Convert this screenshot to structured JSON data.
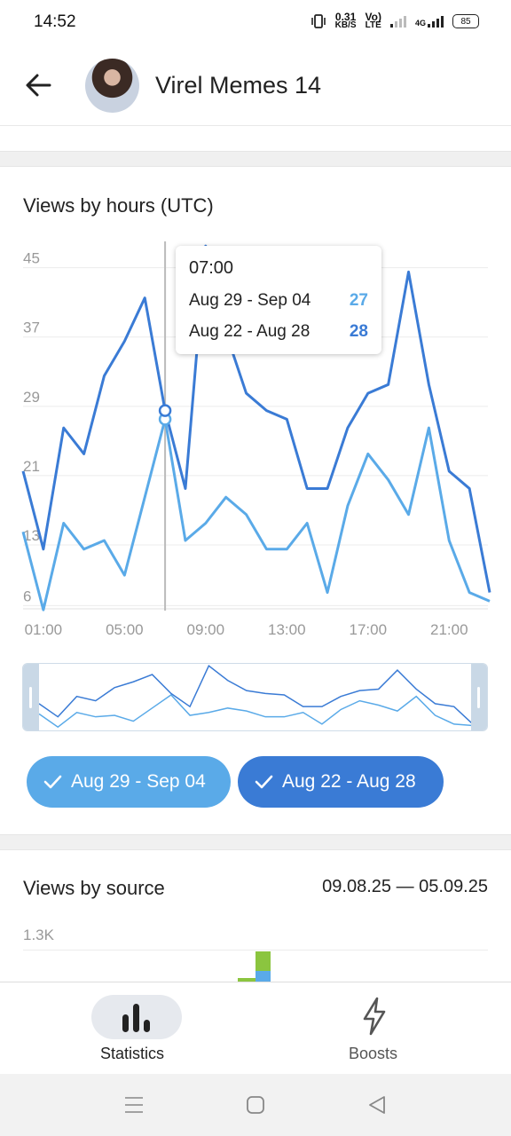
{
  "status": {
    "time": "14:52",
    "speed_value": "0.31",
    "speed_unit": "KB/S",
    "volte1": "Vo)",
    "volte2": "LTE",
    "net": "4G",
    "battery": "85"
  },
  "header": {
    "channel_name": "Virel Memes 14"
  },
  "views_by_hours": {
    "title": "Views by hours (UTC)",
    "tooltip": {
      "time": "07:00",
      "rows": [
        {
          "label": "Aug 29 - Sep 04",
          "value": "27",
          "color": "#5aaae8"
        },
        {
          "label": "Aug 22 - Aug 28",
          "value": "28",
          "color": "#3a7bd5"
        }
      ]
    }
  },
  "chips": [
    {
      "label": "Aug 29 - Sep 04",
      "color": "#5aaae8"
    },
    {
      "label": "Aug 22 - Aug 28",
      "color": "#3a7bd5"
    }
  ],
  "views_by_source": {
    "title": "Views by source",
    "date_range": "09.08.25 — 05.09.25",
    "y_tick": "1.3K",
    "bar_colors": [
      "#8bc53f",
      "#5aaae8"
    ]
  },
  "bottom_nav": {
    "statistics": "Statistics",
    "boosts": "Boosts"
  },
  "chart_data": {
    "type": "line",
    "title": "Views by hours (UTC)",
    "x": [
      "00:00",
      "01:00",
      "02:00",
      "03:00",
      "04:00",
      "05:00",
      "06:00",
      "07:00",
      "08:00",
      "09:00",
      "10:00",
      "11:00",
      "12:00",
      "13:00",
      "14:00",
      "15:00",
      "16:00",
      "17:00",
      "18:00",
      "19:00",
      "20:00",
      "21:00",
      "22:00",
      "23:00"
    ],
    "x_tick_labels": [
      "01:00",
      "05:00",
      "09:00",
      "13:00",
      "17:00",
      "21:00"
    ],
    "y_tick_labels": [
      "6",
      "13",
      "21",
      "29",
      "37",
      "45"
    ],
    "ylim": [
      4.5,
      46.5
    ],
    "grid": true,
    "series": [
      {
        "name": "Aug 22 - Aug 28",
        "color": "#3a7bd5",
        "values": [
          21,
          12,
          26,
          23,
          32,
          36,
          41,
          28,
          19,
          47,
          37,
          30,
          28,
          27,
          19,
          19,
          26,
          30,
          31,
          44,
          31,
          21,
          19,
          7
        ]
      },
      {
        "name": "Aug 29 - Sep 04",
        "color": "#5aaae8",
        "values": [
          14,
          5,
          15,
          12,
          13,
          9,
          18,
          27,
          13,
          15,
          18,
          16,
          12,
          12,
          15,
          7,
          17,
          23,
          20,
          16,
          26,
          13,
          7,
          6
        ]
      }
    ],
    "highlight_index": 7
  }
}
